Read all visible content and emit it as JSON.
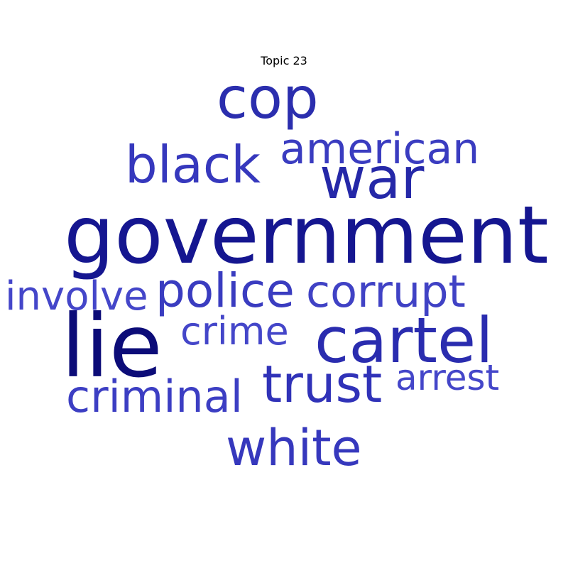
{
  "title": "Topic 23",
  "words": {
    "cop": {
      "text": "cop",
      "color": "#2b2eae"
    },
    "american": {
      "text": "american",
      "color": "#3a3cc0"
    },
    "black": {
      "text": "black",
      "color": "#3638bd"
    },
    "war": {
      "text": "war",
      "color": "#2528a8"
    },
    "government": {
      "text": "government",
      "color": "#151690"
    },
    "involve": {
      "text": "involve",
      "color": "#4446c9"
    },
    "police": {
      "text": "police",
      "color": "#3a3cc0"
    },
    "corrupt": {
      "text": "corrupt",
      "color": "#4042c5"
    },
    "lie": {
      "text": "lie",
      "color": "#0c0c78"
    },
    "crime": {
      "text": "crime",
      "color": "#4446c9"
    },
    "cartel": {
      "text": "cartel",
      "color": "#2a2caf"
    },
    "trust": {
      "text": "trust",
      "color": "#3032b8"
    },
    "arrest": {
      "text": "arrest",
      "color": "#4446c9"
    },
    "criminal": {
      "text": "criminal",
      "color": "#3c3ec3"
    },
    "white": {
      "text": "white",
      "color": "#3638bd"
    }
  }
}
